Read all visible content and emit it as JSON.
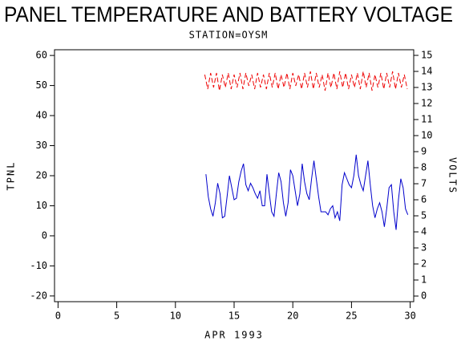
{
  "chart_data": {
    "type": "line",
    "title": "PANEL TEMPERATURE AND BATTERY VOLTAGE",
    "subtitle": "STATION=OYSM",
    "x_label": "APR 1993",
    "y_label": "TPNL",
    "y2_label": "VOLTS",
    "xlim": [
      -0.3,
      30.3
    ],
    "xticks": [
      0,
      5,
      10,
      15,
      20,
      25,
      30
    ],
    "ylim": [
      -21.9,
      61.9
    ],
    "yticks": [
      -20,
      -10,
      0,
      10,
      20,
      30,
      40,
      50,
      60
    ],
    "y2lim": [
      -0.35,
      15.35
    ],
    "y2ticks": [
      0,
      1,
      2,
      3,
      4,
      5,
      6,
      7,
      8,
      9,
      10,
      11,
      12,
      13,
      14,
      15
    ],
    "series": [
      {
        "color": "#0000cc",
        "axis": "y",
        "dashed": false,
        "x": [
          12.6,
          12.8,
          13.0,
          13.2,
          13.4,
          13.6,
          13.8,
          14.0,
          14.2,
          14.4,
          14.6,
          14.8,
          15.0,
          15.2,
          15.4,
          15.6,
          15.8,
          16.0,
          16.2,
          16.4,
          16.6,
          16.8,
          17.0,
          17.2,
          17.4,
          17.6,
          17.8,
          18.0,
          18.2,
          18.4,
          18.6,
          18.8,
          19.0,
          19.2,
          19.4,
          19.6,
          19.8,
          20.0,
          20.2,
          20.4,
          20.6,
          20.8,
          21.0,
          21.2,
          21.4,
          21.6,
          21.8,
          22.0,
          22.2,
          22.4,
          22.6,
          22.8,
          23.0,
          23.2,
          23.4,
          23.6,
          23.8,
          24.0,
          24.2,
          24.4,
          24.6,
          24.8,
          25.0,
          25.2,
          25.4,
          25.6,
          25.8,
          26.0,
          26.2,
          26.4,
          26.6,
          26.8,
          27.0,
          27.2,
          27.4,
          27.6,
          27.8,
          28.0,
          28.2,
          28.4,
          28.6,
          28.8,
          29.0,
          29.2,
          29.4,
          29.6,
          29.8
        ],
        "values": [
          20.5,
          13,
          9,
          6.5,
          11,
          17.5,
          14,
          6,
          6.5,
          13,
          20,
          16,
          12,
          12.5,
          18,
          21.5,
          24,
          17,
          15,
          17.5,
          16,
          14,
          12.5,
          15,
          10,
          10,
          20.5,
          14,
          8,
          6.5,
          14,
          21,
          18,
          11,
          6.5,
          11,
          22,
          20,
          15,
          10,
          14,
          24,
          18,
          14,
          12,
          19,
          25,
          19,
          13,
          8,
          8,
          8,
          7,
          9,
          10,
          6,
          8,
          5,
          17,
          21,
          19,
          17,
          16,
          20,
          27,
          20,
          17,
          15,
          20,
          25,
          17,
          10,
          6,
          9,
          11,
          8,
          3,
          9,
          16,
          17,
          8,
          2,
          12,
          19,
          16,
          9,
          7
        ]
      },
      {
        "color": "#ee0000",
        "axis": "y2",
        "dashed": true,
        "x": [
          12.5,
          12.75,
          13,
          13.25,
          13.5,
          13.75,
          14,
          14.25,
          14.5,
          14.75,
          15,
          15.25,
          15.5,
          15.75,
          16,
          16.25,
          16.5,
          16.75,
          17,
          17.25,
          17.5,
          17.75,
          18,
          18.25,
          18.5,
          18.75,
          19,
          19.25,
          19.5,
          19.75,
          20,
          20.25,
          20.5,
          20.75,
          21,
          21.25,
          21.5,
          21.75,
          22,
          22.25,
          22.5,
          22.75,
          23,
          23.25,
          23.5,
          23.75,
          24,
          24.25,
          24.5,
          24.75,
          25,
          25.25,
          25.5,
          25.75,
          26,
          26.25,
          26.5,
          26.75,
          27,
          27.25,
          27.5,
          27.75,
          28,
          28.25,
          28.5,
          28.75,
          29,
          29.25,
          29.5,
          29.75
        ],
        "values": [
          13.8,
          12.9,
          13.9,
          13.0,
          13.9,
          12.8,
          13.8,
          13.0,
          13.9,
          12.9,
          13.8,
          13.0,
          13.9,
          12.9,
          13.9,
          13.1,
          13.8,
          12.9,
          13.9,
          13.0,
          13.8,
          12.9,
          13.9,
          13.0,
          13.9,
          12.9,
          13.8,
          13.0,
          13.9,
          12.9,
          13.9,
          13.1,
          13.8,
          12.9,
          13.9,
          13.0,
          14.0,
          12.9,
          13.9,
          13.0,
          13.8,
          12.8,
          13.9,
          13.0,
          13.9,
          12.9,
          14.0,
          13.0,
          13.9,
          12.9,
          13.8,
          13.0,
          13.9,
          12.9,
          14.0,
          13.0,
          13.9,
          12.8,
          13.8,
          13.0,
          13.9,
          12.9,
          13.9,
          13.0,
          14.0,
          12.9,
          13.9,
          13.0,
          13.8,
          12.9
        ]
      }
    ]
  }
}
